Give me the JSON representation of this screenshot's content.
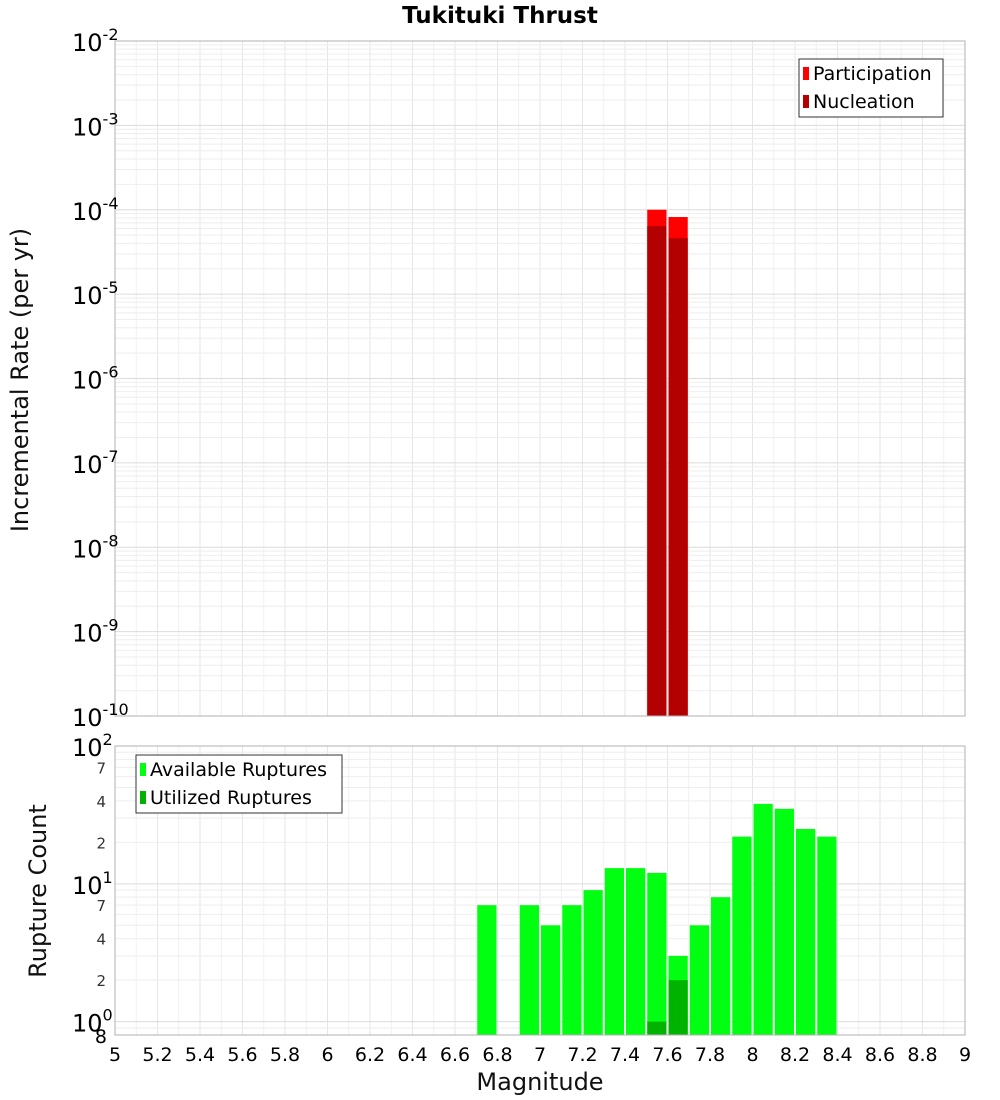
{
  "chart_data": [
    {
      "type": "bar",
      "title": "Tukituki Thrust",
      "ylabel": "Incremental Rate (per yr)",
      "yscale": "log",
      "ylim": [
        1e-10,
        0.01
      ],
      "xlim": [
        5,
        9
      ],
      "bar_width": 0.1,
      "y_tick_bases": [
        "10",
        "10",
        "10",
        "10",
        "10",
        "10",
        "10",
        "10",
        "10"
      ],
      "y_tick_exponents": [
        "-10",
        "-9",
        "-8",
        "-7",
        "-6",
        "-5",
        "-4",
        "-3",
        "-2"
      ],
      "legend": {
        "position": "top-right",
        "entries": [
          "Participation",
          "Nucleation"
        ]
      },
      "series": [
        {
          "name": "Participation",
          "color": "#ff0000",
          "x": [
            7.55,
            7.65
          ],
          "values": [
            0.0001,
            8.2e-05
          ]
        },
        {
          "name": "Nucleation",
          "color": "#b30000",
          "x": [
            7.55,
            7.65
          ],
          "values": [
            6.4e-05,
            4.6e-05
          ]
        }
      ],
      "grid": true
    },
    {
      "type": "bar",
      "ylabel": "Rupture Count",
      "xlabel": "Magnitude",
      "yscale": "log",
      "ylim": [
        0.8,
        100
      ],
      "xlim": [
        5,
        9
      ],
      "bar_width": 0.1,
      "x_ticks": [
        "5",
        "5.2",
        "5.4",
        "5.6",
        "5.8",
        "6",
        "6.2",
        "6.4",
        "6.6",
        "6.8",
        "7",
        "7.2",
        "7.4",
        "7.6",
        "7.8",
        "8",
        "8.2",
        "8.4",
        "8.6",
        "8.8",
        "9"
      ],
      "y_major_ticks": [
        {
          "base": "10",
          "exp": "0"
        },
        {
          "base": "10",
          "exp": "1"
        },
        {
          "base": "10",
          "exp": "2"
        }
      ],
      "y_minor_labels": [
        "8",
        "2",
        "4",
        "7",
        "2",
        "4",
        "7"
      ],
      "legend": {
        "position": "top-left",
        "entries": [
          "Available Ruptures",
          "Utilized Ruptures"
        ]
      },
      "series": [
        {
          "name": "Available Ruptures",
          "color": "#00ff11",
          "x": [
            6.75,
            6.95,
            7.05,
            7.15,
            7.25,
            7.35,
            7.45,
            7.55,
            7.65,
            7.75,
            7.85,
            7.95,
            8.05,
            8.15,
            8.25,
            8.35
          ],
          "values": [
            7,
            7,
            5,
            7,
            9,
            13,
            13,
            12,
            3,
            5,
            8,
            22,
            38,
            35,
            25,
            22
          ]
        },
        {
          "name": "Utilized Ruptures",
          "color": "#00b300",
          "x": [
            7.55,
            7.65
          ],
          "values": [
            1,
            2
          ]
        }
      ],
      "grid": true
    }
  ]
}
